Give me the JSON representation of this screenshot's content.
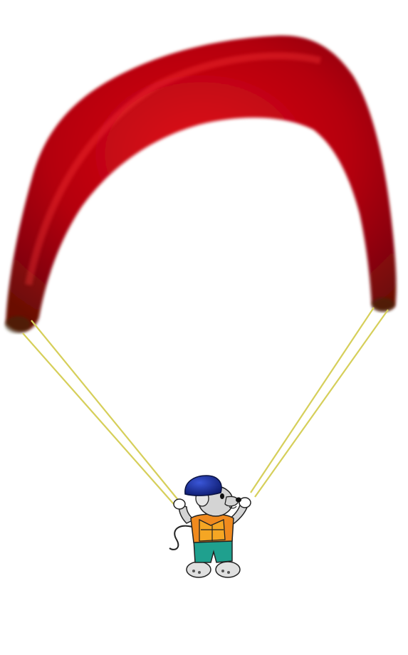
{
  "scene": {
    "canopy_color": "#c8000e",
    "canopy_shadow": "#5a0a08",
    "canopy_tip_color": "#2f3a08",
    "line_color": "#d8d060",
    "helmet_color": "#1b2f9c",
    "shirt_color": "#f08a1e",
    "vest_color": "#f5a623",
    "shorts_color": "#1fa08e",
    "fur_color": "#d4d4d4"
  }
}
